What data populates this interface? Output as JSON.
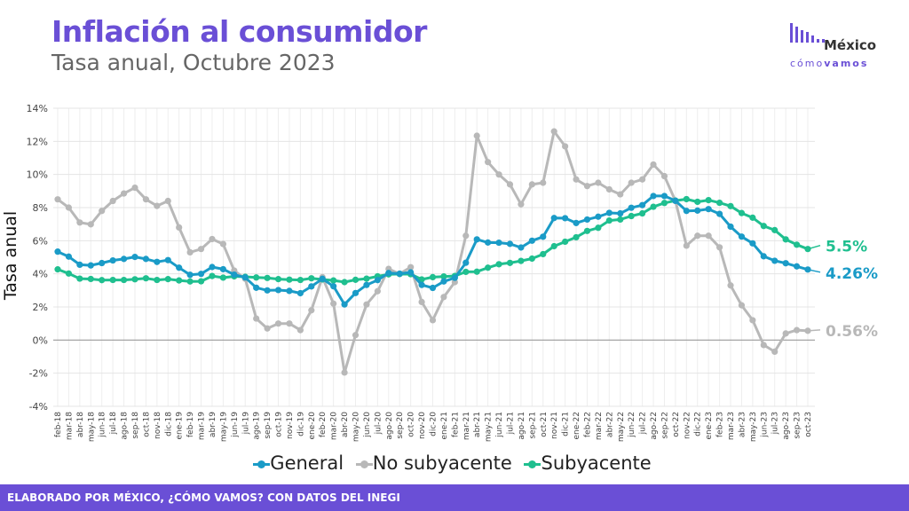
{
  "header": {
    "title": "Inflación al consumidor",
    "subtitle": "Tasa anual, Octubre 2023"
  },
  "logo": {
    "name": "México",
    "tag_light": "cómo",
    "tag_bold": "vamos",
    "icon": "bar-signal-icon"
  },
  "footer": {
    "text": "ELABORADO POR MÉXICO, ¿CÓMO VAMOS? CON DATOS DEL INEGI"
  },
  "colors": {
    "title": "#6a4fd6",
    "general": "#1a9bc7",
    "no_subyacente": "#b8b8b8",
    "subyacente": "#1fbf8f",
    "footer_bg": "#6a4fd6"
  },
  "chart_data": {
    "type": "line",
    "ylabel": "Tasa anual",
    "ylim": [
      -4,
      14
    ],
    "yticks": [
      "-4%",
      "-2%",
      "0%",
      "2%",
      "4%",
      "6%",
      "8%",
      "10%",
      "12%",
      "14%"
    ],
    "ytick_values": [
      -4,
      -2,
      0,
      2,
      4,
      6,
      8,
      10,
      12,
      14
    ],
    "grid": true,
    "legend_position": "bottom",
    "x_tick_labels": [
      "feb-18",
      "mar-18",
      "abr-18",
      "may-18",
      "jun-18",
      "jul-18",
      "ago-18",
      "sep-18",
      "oct-18",
      "nov-18",
      "dic-18",
      "ene-19",
      "feb-19",
      "mar-19",
      "abr-19",
      "may-19",
      "jun-19",
      "jul-19",
      "ago-19",
      "sep-19",
      "oct-19",
      "nov-19",
      "dic-19",
      "ene-20",
      "feb-20",
      "mar-20",
      "abr-20",
      "may-20",
      "jun-20",
      "jul-20",
      "ago-20",
      "sep-20",
      "oct-20",
      "nov-20",
      "dic-20",
      "ene-21",
      "feb-21",
      "mar-21",
      "abr-21",
      "may-21",
      "jun-21",
      "jul-21",
      "ago-21",
      "sep-21",
      "oct-21",
      "nov-21",
      "dic-21",
      "ene-22",
      "feb-22",
      "mar-22",
      "abr-22",
      "may-22",
      "jun-22",
      "jul-22",
      "ago-22",
      "sep-22",
      "oct-22",
      "nov-22",
      "dic-22",
      "ene-23",
      "feb-23",
      "mar-23",
      "abr-23",
      "may-23",
      "jun-23",
      "jul-23",
      "ago-23",
      "sep-23",
      "oct-23"
    ],
    "series": [
      {
        "name": "General",
        "color": "#1a9bc7",
        "end_label": "4.26%",
        "values": [
          5.34,
          5.04,
          4.55,
          4.51,
          4.65,
          4.81,
          4.9,
          5.02,
          4.9,
          4.72,
          4.83,
          4.37,
          3.94,
          4.0,
          4.41,
          4.28,
          3.95,
          3.78,
          3.16,
          3.0,
          3.02,
          2.97,
          2.83,
          3.24,
          3.7,
          3.25,
          2.15,
          2.84,
          3.33,
          3.62,
          4.05,
          4.01,
          4.09,
          3.33,
          3.15,
          3.54,
          3.76,
          4.67,
          6.08,
          5.89,
          5.88,
          5.81,
          5.59,
          6.0,
          6.24,
          7.37,
          7.36,
          7.07,
          7.28,
          7.45,
          7.68,
          7.65,
          7.99,
          8.15,
          8.7,
          8.7,
          8.41,
          7.8,
          7.82,
          7.91,
          7.62,
          6.85,
          6.25,
          5.84,
          5.06,
          4.79,
          4.64,
          4.45,
          4.26
        ]
      },
      {
        "name": "No subyacente",
        "color": "#b8b8b8",
        "end_label": "0.56%",
        "values": [
          8.5,
          8.0,
          7.1,
          6.99,
          7.8,
          8.4,
          8.85,
          9.2,
          8.5,
          8.1,
          8.4,
          6.8,
          5.3,
          5.5,
          6.1,
          5.8,
          4.2,
          3.7,
          1.3,
          0.7,
          1.0,
          1.0,
          0.6,
          1.8,
          3.8,
          2.2,
          -1.96,
          0.3,
          2.15,
          2.95,
          4.3,
          4.0,
          4.4,
          2.3,
          1.2,
          2.6,
          3.5,
          6.3,
          12.34,
          10.75,
          10.0,
          9.4,
          8.2,
          9.4,
          9.5,
          12.6,
          11.7,
          9.7,
          9.3,
          9.5,
          9.1,
          8.8,
          9.5,
          9.7,
          10.6,
          9.9,
          8.4,
          5.7,
          6.3,
          6.3,
          5.6,
          3.3,
          2.1,
          1.2,
          -0.3,
          -0.7,
          0.4,
          0.6,
          0.56
        ]
      },
      {
        "name": "Subyacente",
        "color": "#1fbf8f",
        "end_label": "5.5%",
        "values": [
          4.27,
          4.02,
          3.71,
          3.69,
          3.62,
          3.63,
          3.63,
          3.67,
          3.73,
          3.63,
          3.68,
          3.6,
          3.54,
          3.55,
          3.87,
          3.77,
          3.85,
          3.82,
          3.78,
          3.75,
          3.68,
          3.65,
          3.63,
          3.73,
          3.66,
          3.6,
          3.5,
          3.64,
          3.71,
          3.85,
          3.97,
          3.99,
          3.98,
          3.66,
          3.8,
          3.84,
          3.87,
          4.12,
          4.13,
          4.37,
          4.58,
          4.66,
          4.78,
          4.92,
          5.19,
          5.67,
          5.94,
          6.21,
          6.59,
          6.78,
          7.22,
          7.28,
          7.49,
          7.65,
          8.05,
          8.28,
          8.42,
          8.51,
          8.35,
          8.45,
          8.29,
          8.09,
          7.67,
          7.39,
          6.89,
          6.64,
          6.08,
          5.76,
          5.5
        ]
      }
    ]
  }
}
